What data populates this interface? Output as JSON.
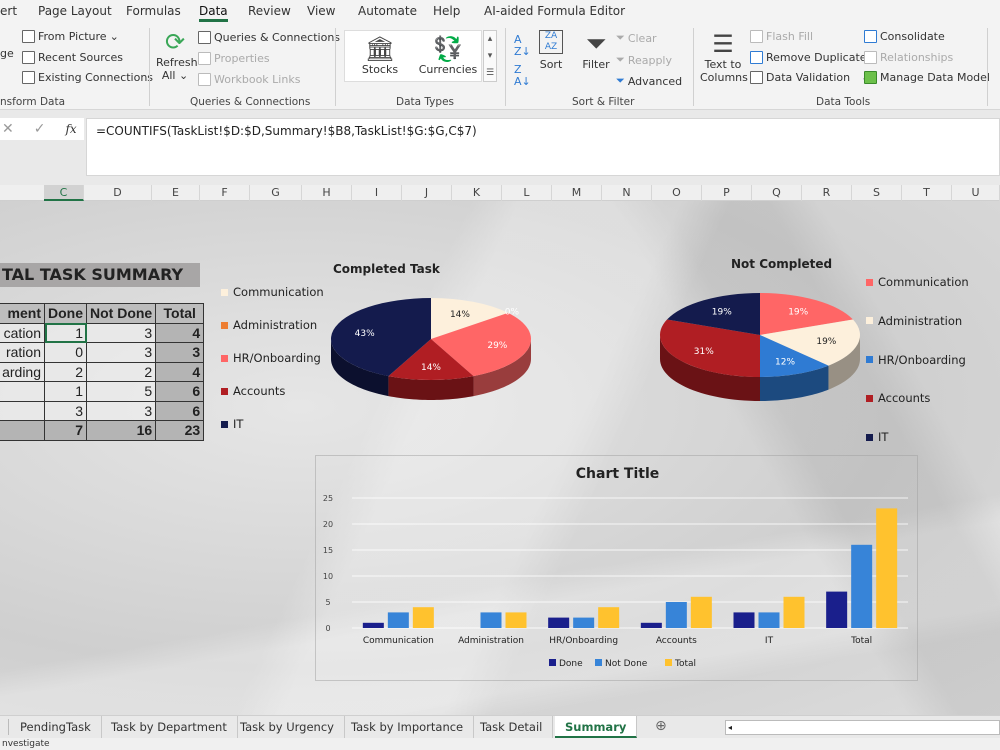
{
  "menu": {
    "tabs": [
      "ert",
      "Page Layout",
      "Formulas",
      "Data",
      "Review",
      "View",
      "Automate",
      "Help",
      "AI-aided Formula Editor"
    ],
    "active": "Data"
  },
  "ribbon": {
    "get_transform": {
      "items": [
        "From Picture",
        "Recent Sources",
        "Existing Connections"
      ],
      "partial": "ge",
      "label": "nsform Data"
    },
    "queries": {
      "refresh": "Refresh",
      "refresh2": "All",
      "items": [
        "Queries & Connections",
        "Properties",
        "Workbook Links"
      ],
      "label": "Queries & Connections"
    },
    "data_types": {
      "items": [
        "Stocks",
        "Currencies"
      ],
      "label": "Data Types"
    },
    "sort_filter": {
      "sort": "Sort",
      "filter": "Filter",
      "items": [
        "Clear",
        "Reapply",
        "Advanced"
      ],
      "label": "Sort & Filter"
    },
    "data_tools": {
      "text_to_columns": "Text to",
      "text_to_columns2": "Columns",
      "items": [
        "Flash Fill",
        "Remove Duplicates",
        "Data Validation",
        "Consolidate",
        "Relationships",
        "Manage Data Model"
      ],
      "label": "Data Tools"
    }
  },
  "formula_bar": {
    "formula": "=COUNTIFS(TaskList!$D:$D,Summary!$B8,TaskList!$G:$G,C$7)",
    "fx": "fx"
  },
  "columns": [
    "C",
    "D",
    "E",
    "F",
    "G",
    "H",
    "I",
    "J",
    "K",
    "L",
    "M",
    "N",
    "O",
    "P",
    "Q",
    "R",
    "S",
    "T",
    "U"
  ],
  "summary": {
    "title": "TAL TASK SUMMARY",
    "headers": [
      "ment",
      "Done",
      "Not Done",
      "Total"
    ],
    "rows": [
      [
        "cation",
        "1",
        "3",
        "4"
      ],
      [
        "ration",
        "0",
        "3",
        "3"
      ],
      [
        "arding",
        "2",
        "2",
        "4"
      ],
      [
        "",
        "1",
        "5",
        "6"
      ],
      [
        "",
        "3",
        "3",
        "6"
      ],
      [
        "",
        "7",
        "16",
        "23"
      ]
    ]
  },
  "colors": {
    "Communication": "#fdf0dc",
    "Administration": "#ed7d31",
    "HR/Onboarding": "#ff6666",
    "Accounts": "#b01e23",
    "IT": "#141b4d",
    "blue": "#2f7bd3",
    "done": "#1a1f8c",
    "notdone": "#3784d8",
    "total": "#ffc22e",
    "accent": "#217346"
  },
  "chart_data": [
    {
      "type": "pie",
      "title": "Completed Task",
      "categories": [
        "Communication",
        "Administration",
        "HR/Onboarding",
        "Accounts",
        "IT"
      ],
      "values": [
        14,
        0,
        29,
        14,
        43
      ],
      "labels": [
        "14%",
        "0%",
        "29%",
        "14%",
        "43%"
      ],
      "colors": [
        "#fdf0dc",
        "#ed7d31",
        "#ff6666",
        "#b01e23",
        "#141b4d"
      ],
      "legend": "left"
    },
    {
      "type": "pie",
      "title": "Not Completed",
      "categories": [
        "Communication",
        "Administration",
        "HR/Onboarding",
        "Accounts",
        "IT"
      ],
      "values": [
        19,
        19,
        12,
        31,
        19
      ],
      "labels": [
        "19%",
        "19%",
        "12%",
        "31%",
        "19%"
      ],
      "colors": [
        "#ff6666",
        "#fdf0dc",
        "#2f7bd3",
        "#b01e23",
        "#141b4d"
      ],
      "legend": "right"
    },
    {
      "type": "bar",
      "title": "Chart Title",
      "categories": [
        "Communication",
        "Administration",
        "HR/Onboarding",
        "Accounts",
        "IT",
        "Total"
      ],
      "series": [
        {
          "name": "Done",
          "values": [
            1,
            0,
            2,
            1,
            3,
            7
          ],
          "color": "#1a1f8c"
        },
        {
          "name": "Not Done",
          "values": [
            3,
            3,
            2,
            5,
            3,
            16
          ],
          "color": "#3784d8"
        },
        {
          "name": "Total",
          "values": [
            4,
            3,
            4,
            6,
            6,
            23
          ],
          "color": "#ffc22e"
        }
      ],
      "ylim": [
        0,
        25
      ],
      "yticks": [
        "0",
        "5",
        "10",
        "15",
        "20",
        "25"
      ],
      "grid": true,
      "legend": "bottom"
    }
  ],
  "sheet_tabs": {
    "tabs": [
      "PendingTask",
      "Task by Department",
      "Task by Urgency",
      "Task by Importance",
      "Task Detail",
      "Summary"
    ],
    "active": "Summary"
  },
  "status": {
    "text": "nvestigate"
  }
}
